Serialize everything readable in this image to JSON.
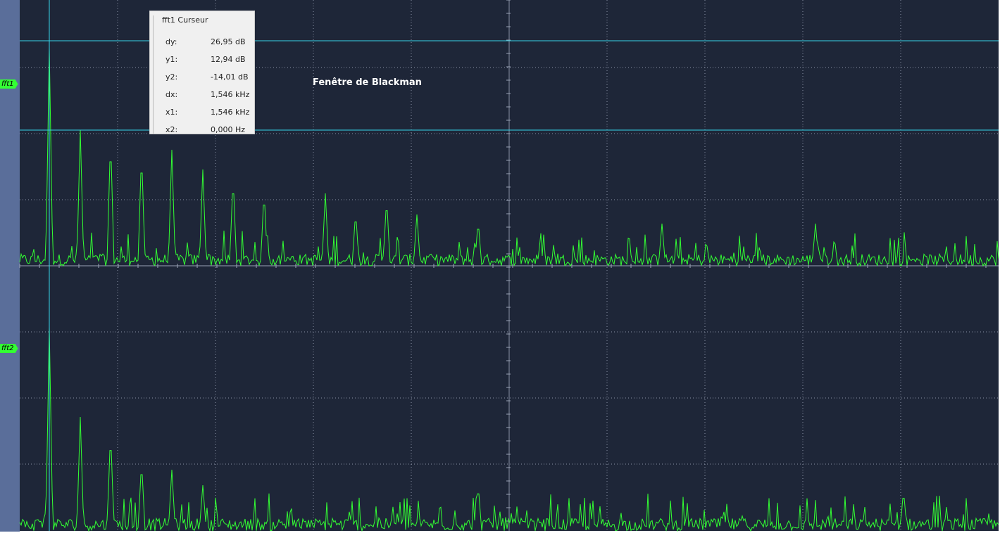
{
  "cursor_panel": {
    "title": "fft1 Curseur",
    "rows": [
      {
        "label": "dy:",
        "value": "26,95 dB"
      },
      {
        "label": "y1:",
        "value": "12,94 dB"
      },
      {
        "label": "y2:",
        "value": "-14,01 dB"
      },
      {
        "label": "dx:",
        "value": "1,546 kHz"
      },
      {
        "label": "x1:",
        "value": "1,546 kHz"
      },
      {
        "label": "x2:",
        "value": "0,000 Hz"
      }
    ]
  },
  "annotation": "Fenêtre de Blackman",
  "traces": [
    {
      "label": "fft1"
    },
    {
      "label": "fft2"
    }
  ]
}
